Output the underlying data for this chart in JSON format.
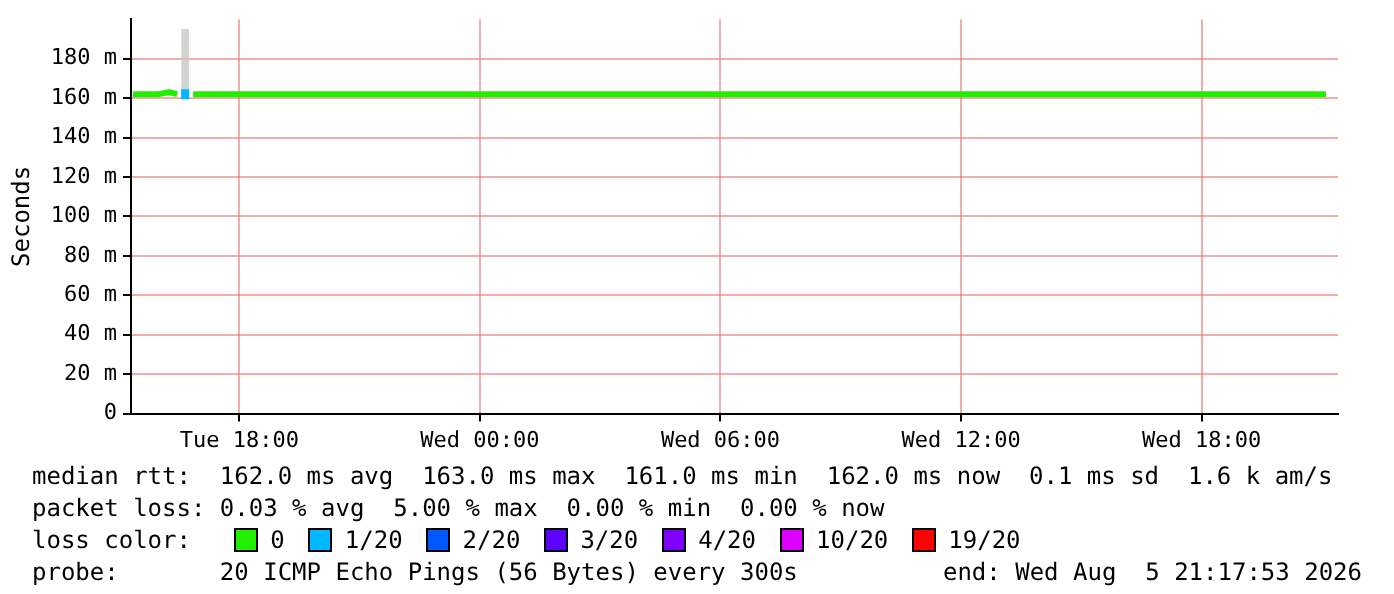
{
  "chart_data": {
    "type": "line",
    "ylabel": "Seconds",
    "x": [
      "2026-08-04T15:21",
      "2026-08-04T15:30",
      "2026-08-04T16:00",
      "2026-08-04T16:15",
      "2026-08-04T16:27",
      "2026-08-04T16:33",
      "2026-08-04T16:39",
      "2026-08-04T16:45",
      "2026-08-04T16:51",
      "2026-08-04T17:00",
      "2026-08-04T18:00",
      "2026-08-04T20:00",
      "2026-08-04T22:00",
      "2026-08-05T00:00",
      "2026-08-05T02:00",
      "2026-08-05T04:00",
      "2026-08-05T06:00",
      "2026-08-05T08:00",
      "2026-08-05T10:00",
      "2026-08-05T12:00",
      "2026-08-05T14:00",
      "2026-08-05T16:00",
      "2026-08-05T18:00",
      "2026-08-05T20:00",
      "2026-08-05T21:06"
    ],
    "series": [
      {
        "name": "0",
        "color": "#22ee00",
        "values": [
          162,
          162,
          162,
          163,
          162,
          null,
          null,
          null,
          162,
          162,
          162,
          162,
          162,
          162,
          162,
          162,
          162,
          162,
          162,
          162,
          162,
          162,
          162,
          162,
          162
        ]
      },
      {
        "name": "1/20",
        "color": "#00b8ff",
        "values": [
          null,
          null,
          null,
          null,
          null,
          162,
          162,
          162,
          null,
          null,
          null,
          null,
          null,
          null,
          null,
          null,
          null,
          null,
          null,
          null,
          null,
          null,
          null,
          null,
          null
        ],
        "lower": [
          null,
          null,
          null,
          null,
          null,
          161,
          161,
          161,
          null,
          null,
          null,
          null,
          null,
          null,
          null,
          null,
          null,
          null,
          null,
          null,
          null,
          null,
          null,
          null,
          null
        ],
        "upper": [
          null,
          null,
          null,
          null,
          null,
          195,
          195,
          195,
          null,
          null,
          null,
          null,
          null,
          null,
          null,
          null,
          null,
          null,
          null,
          null,
          null,
          null,
          null,
          null,
          null
        ]
      },
      {
        "name": "2/20",
        "color": "#0059ff",
        "values": [
          null,
          null,
          null,
          null,
          null,
          null,
          null,
          null,
          null,
          null,
          null,
          null,
          null,
          null,
          null,
          null,
          null,
          null,
          null,
          null,
          null,
          null,
          null,
          null,
          null
        ]
      },
      {
        "name": "3/20",
        "color": "#5e00ff",
        "values": [
          null,
          null,
          null,
          null,
          null,
          null,
          null,
          null,
          null,
          null,
          null,
          null,
          null,
          null,
          null,
          null,
          null,
          null,
          null,
          null,
          null,
          null,
          null,
          null,
          null
        ]
      },
      {
        "name": "4/20",
        "color": "#7e00ff",
        "values": [
          null,
          null,
          null,
          null,
          null,
          null,
          null,
          null,
          null,
          null,
          null,
          null,
          null,
          null,
          null,
          null,
          null,
          null,
          null,
          null,
          null,
          null,
          null,
          null,
          null
        ]
      },
      {
        "name": "10/20",
        "color": "#dd00ff",
        "values": [
          null,
          null,
          null,
          null,
          null,
          null,
          null,
          null,
          null,
          null,
          null,
          null,
          null,
          null,
          null,
          null,
          null,
          null,
          null,
          null,
          null,
          null,
          null,
          null,
          null
        ]
      },
      {
        "name": "19/20",
        "color": "#ff0000",
        "values": [
          null,
          null,
          null,
          null,
          null,
          null,
          null,
          null,
          null,
          null,
          null,
          null,
          null,
          null,
          null,
          null,
          null,
          null,
          null,
          null,
          null,
          null,
          null,
          null,
          null
        ]
      }
    ],
    "xlim": [
      "2026-08-04T15:18",
      "2026-08-05T21:24"
    ],
    "xticks": [
      {
        "value": "2026-08-04T18:00",
        "label": "Tue 18:00"
      },
      {
        "value": "2026-08-05T00:00",
        "label": "Wed 00:00"
      },
      {
        "value": "2026-08-05T06:00",
        "label": "Wed 06:00"
      },
      {
        "value": "2026-08-05T12:00",
        "label": "Wed 12:00"
      },
      {
        "value": "2026-08-05T18:00",
        "label": "Wed 18:00"
      }
    ],
    "ylim": [
      0,
      200
    ],
    "yticks": [
      0,
      {
        "value": 20,
        "label": "20 m"
      },
      {
        "value": 40,
        "label": "40 m"
      },
      {
        "value": 60,
        "label": "60 m"
      },
      {
        "value": 80,
        "label": "80 m"
      },
      {
        "value": 100,
        "label": "100 m"
      },
      {
        "value": 120,
        "label": "120 m"
      },
      {
        "value": 140,
        "label": "140 m"
      },
      {
        "value": 160,
        "label": "160 m"
      },
      {
        "value": 180,
        "label": "180 m"
      }
    ],
    "grid": true,
    "legend": "bottom",
    "legend_title": "loss color:",
    "marker": "none",
    "line_style": "solid",
    "annotations": [
      "median rtt:  162.0 ms avg  163.0 ms max  161.0 ms min  162.0 ms now  0.1 ms sd  1.6 k am/s",
      "packet loss: 0.03 % avg  5.00 % max  0.00 % min  0.00 % now",
      "probe:       20 ICMP Echo Pings (56 Bytes) every 300s",
      "end: Wed Aug  5 21:17:53 2026"
    ]
  }
}
